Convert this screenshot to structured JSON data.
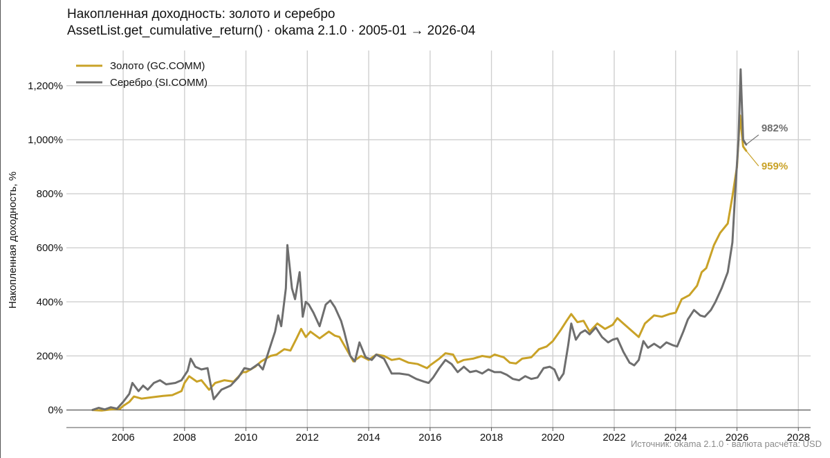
{
  "header": {
    "title": "Накопленная доходность: золото и серебро",
    "subtitle": "AssetList.get_cumulative_return() · okama 2.1.0 · 2005-01 → 2026-04"
  },
  "footer": {
    "source": "Источник: okama 2.1.0 · валюта расчёта: USD"
  },
  "chart_data": {
    "type": "line",
    "title": "Накопленная доходность: золото и серебро",
    "subtitle": "AssetList.get_cumulative_return() · okama 2.1.0 · 2005-01 → 2026-04",
    "xlabel": "",
    "ylabel": "Накопленная доходность, %",
    "xlim": [
      2004.15,
      2028.4
    ],
    "ylim": [
      -65,
      1330
    ],
    "x_ticks": [
      2006,
      2008,
      2010,
      2012,
      2014,
      2016,
      2018,
      2020,
      2022,
      2024,
      2026,
      2028
    ],
    "y_ticks": [
      0,
      200,
      400,
      600,
      800,
      1000,
      1200
    ],
    "y_tick_labels": [
      "0%",
      "200%",
      "400%",
      "600%",
      "800%",
      "1,000%",
      "1,200%"
    ],
    "grid": true,
    "legend_position": "top-left",
    "series": [
      {
        "name": "Золото (GC.COMM)",
        "color": "#c9a227",
        "end_label": "959%",
        "points": [
          [
            2005.0,
            0
          ],
          [
            2005.3,
            -2
          ],
          [
            2005.6,
            2
          ],
          [
            2005.9,
            5
          ],
          [
            2006.0,
            15
          ],
          [
            2006.2,
            30
          ],
          [
            2006.35,
            50
          ],
          [
            2006.6,
            42
          ],
          [
            2006.8,
            45
          ],
          [
            2007.0,
            48
          ],
          [
            2007.3,
            52
          ],
          [
            2007.6,
            55
          ],
          [
            2007.9,
            70
          ],
          [
            2008.0,
            100
          ],
          [
            2008.15,
            125
          ],
          [
            2008.4,
            105
          ],
          [
            2008.55,
            110
          ],
          [
            2008.8,
            75
          ],
          [
            2009.0,
            100
          ],
          [
            2009.3,
            110
          ],
          [
            2009.6,
            105
          ],
          [
            2009.9,
            140
          ],
          [
            2010.0,
            140
          ],
          [
            2010.3,
            160
          ],
          [
            2010.5,
            180
          ],
          [
            2010.8,
            200
          ],
          [
            2011.0,
            205
          ],
          [
            2011.25,
            225
          ],
          [
            2011.45,
            220
          ],
          [
            2011.65,
            265
          ],
          [
            2011.8,
            300
          ],
          [
            2011.95,
            270
          ],
          [
            2012.1,
            290
          ],
          [
            2012.4,
            265
          ],
          [
            2012.7,
            290
          ],
          [
            2012.9,
            275
          ],
          [
            2013.05,
            270
          ],
          [
            2013.25,
            230
          ],
          [
            2013.5,
            180
          ],
          [
            2013.75,
            200
          ],
          [
            2014.0,
            185
          ],
          [
            2014.25,
            205
          ],
          [
            2014.5,
            200
          ],
          [
            2014.75,
            185
          ],
          [
            2015.0,
            190
          ],
          [
            2015.3,
            175
          ],
          [
            2015.6,
            170
          ],
          [
            2015.9,
            155
          ],
          [
            2016.0,
            165
          ],
          [
            2016.3,
            190
          ],
          [
            2016.5,
            210
          ],
          [
            2016.75,
            205
          ],
          [
            2016.9,
            175
          ],
          [
            2017.1,
            185
          ],
          [
            2017.4,
            190
          ],
          [
            2017.7,
            200
          ],
          [
            2017.95,
            195
          ],
          [
            2018.1,
            205
          ],
          [
            2018.4,
            195
          ],
          [
            2018.6,
            175
          ],
          [
            2018.8,
            172
          ],
          [
            2019.0,
            190
          ],
          [
            2019.3,
            195
          ],
          [
            2019.55,
            225
          ],
          [
            2019.8,
            235
          ],
          [
            2020.0,
            255
          ],
          [
            2020.25,
            295
          ],
          [
            2020.45,
            330
          ],
          [
            2020.6,
            355
          ],
          [
            2020.8,
            325
          ],
          [
            2021.0,
            330
          ],
          [
            2021.2,
            290
          ],
          [
            2021.45,
            320
          ],
          [
            2021.7,
            300
          ],
          [
            2021.95,
            315
          ],
          [
            2022.1,
            340
          ],
          [
            2022.3,
            320
          ],
          [
            2022.55,
            295
          ],
          [
            2022.8,
            270
          ],
          [
            2023.0,
            320
          ],
          [
            2023.3,
            350
          ],
          [
            2023.55,
            345
          ],
          [
            2023.8,
            355
          ],
          [
            2024.0,
            360
          ],
          [
            2024.2,
            410
          ],
          [
            2024.45,
            425
          ],
          [
            2024.7,
            460
          ],
          [
            2024.85,
            510
          ],
          [
            2025.0,
            525
          ],
          [
            2025.25,
            610
          ],
          [
            2025.45,
            655
          ],
          [
            2025.7,
            690
          ],
          [
            2025.85,
            790
          ],
          [
            2026.0,
            900
          ],
          [
            2026.1,
            1090
          ],
          [
            2026.2,
            975
          ],
          [
            2026.3,
            959
          ]
        ]
      },
      {
        "name": "Серебро (SI.COMM)",
        "color": "#6e6e6e",
        "end_label": "982%",
        "points": [
          [
            2005.0,
            0
          ],
          [
            2005.2,
            8
          ],
          [
            2005.4,
            2
          ],
          [
            2005.6,
            10
          ],
          [
            2005.8,
            5
          ],
          [
            2006.0,
            30
          ],
          [
            2006.2,
            60
          ],
          [
            2006.3,
            100
          ],
          [
            2006.5,
            70
          ],
          [
            2006.65,
            90
          ],
          [
            2006.8,
            75
          ],
          [
            2007.0,
            100
          ],
          [
            2007.2,
            110
          ],
          [
            2007.4,
            95
          ],
          [
            2007.7,
            100
          ],
          [
            2007.9,
            110
          ],
          [
            2008.1,
            145
          ],
          [
            2008.2,
            190
          ],
          [
            2008.35,
            160
          ],
          [
            2008.55,
            150
          ],
          [
            2008.75,
            155
          ],
          [
            2008.85,
            95
          ],
          [
            2008.95,
            40
          ],
          [
            2009.2,
            75
          ],
          [
            2009.5,
            90
          ],
          [
            2009.75,
            120
          ],
          [
            2009.95,
            155
          ],
          [
            2010.15,
            150
          ],
          [
            2010.4,
            170
          ],
          [
            2010.55,
            150
          ],
          [
            2010.75,
            220
          ],
          [
            2010.95,
            290
          ],
          [
            2011.05,
            350
          ],
          [
            2011.15,
            310
          ],
          [
            2011.3,
            450
          ],
          [
            2011.35,
            610
          ],
          [
            2011.5,
            450
          ],
          [
            2011.6,
            410
          ],
          [
            2011.75,
            510
          ],
          [
            2011.85,
            345
          ],
          [
            2011.95,
            400
          ],
          [
            2012.05,
            390
          ],
          [
            2012.2,
            360
          ],
          [
            2012.4,
            310
          ],
          [
            2012.6,
            390
          ],
          [
            2012.75,
            405
          ],
          [
            2012.9,
            380
          ],
          [
            2013.1,
            330
          ],
          [
            2013.2,
            290
          ],
          [
            2013.4,
            200
          ],
          [
            2013.55,
            180
          ],
          [
            2013.7,
            250
          ],
          [
            2013.9,
            195
          ],
          [
            2014.1,
            185
          ],
          [
            2014.25,
            205
          ],
          [
            2014.5,
            190
          ],
          [
            2014.75,
            135
          ],
          [
            2015.0,
            135
          ],
          [
            2015.3,
            130
          ],
          [
            2015.55,
            115
          ],
          [
            2015.8,
            105
          ],
          [
            2015.95,
            100
          ],
          [
            2016.1,
            120
          ],
          [
            2016.3,
            155
          ],
          [
            2016.5,
            185
          ],
          [
            2016.7,
            170
          ],
          [
            2016.9,
            140
          ],
          [
            2017.1,
            160
          ],
          [
            2017.3,
            140
          ],
          [
            2017.5,
            145
          ],
          [
            2017.7,
            135
          ],
          [
            2017.9,
            150
          ],
          [
            2018.1,
            140
          ],
          [
            2018.3,
            140
          ],
          [
            2018.5,
            130
          ],
          [
            2018.7,
            115
          ],
          [
            2018.9,
            110
          ],
          [
            2019.1,
            125
          ],
          [
            2019.3,
            115
          ],
          [
            2019.5,
            120
          ],
          [
            2019.7,
            155
          ],
          [
            2019.9,
            160
          ],
          [
            2020.05,
            150
          ],
          [
            2020.2,
            110
          ],
          [
            2020.35,
            135
          ],
          [
            2020.5,
            240
          ],
          [
            2020.6,
            320
          ],
          [
            2020.75,
            260
          ],
          [
            2020.9,
            285
          ],
          [
            2021.05,
            295
          ],
          [
            2021.2,
            280
          ],
          [
            2021.4,
            305
          ],
          [
            2021.6,
            270
          ],
          [
            2021.8,
            250
          ],
          [
            2021.95,
            260
          ],
          [
            2022.1,
            265
          ],
          [
            2022.3,
            215
          ],
          [
            2022.5,
            175
          ],
          [
            2022.65,
            165
          ],
          [
            2022.8,
            185
          ],
          [
            2022.95,
            255
          ],
          [
            2023.1,
            230
          ],
          [
            2023.3,
            245
          ],
          [
            2023.5,
            230
          ],
          [
            2023.7,
            250
          ],
          [
            2023.9,
            240
          ],
          [
            2024.05,
            235
          ],
          [
            2024.25,
            290
          ],
          [
            2024.4,
            335
          ],
          [
            2024.6,
            370
          ],
          [
            2024.8,
            350
          ],
          [
            2024.95,
            345
          ],
          [
            2025.15,
            370
          ],
          [
            2025.3,
            400
          ],
          [
            2025.5,
            450
          ],
          [
            2025.7,
            510
          ],
          [
            2025.85,
            620
          ],
          [
            2025.95,
            820
          ],
          [
            2026.05,
            1000
          ],
          [
            2026.12,
            1260
          ],
          [
            2026.2,
            1000
          ],
          [
            2026.3,
            982
          ]
        ]
      }
    ]
  }
}
